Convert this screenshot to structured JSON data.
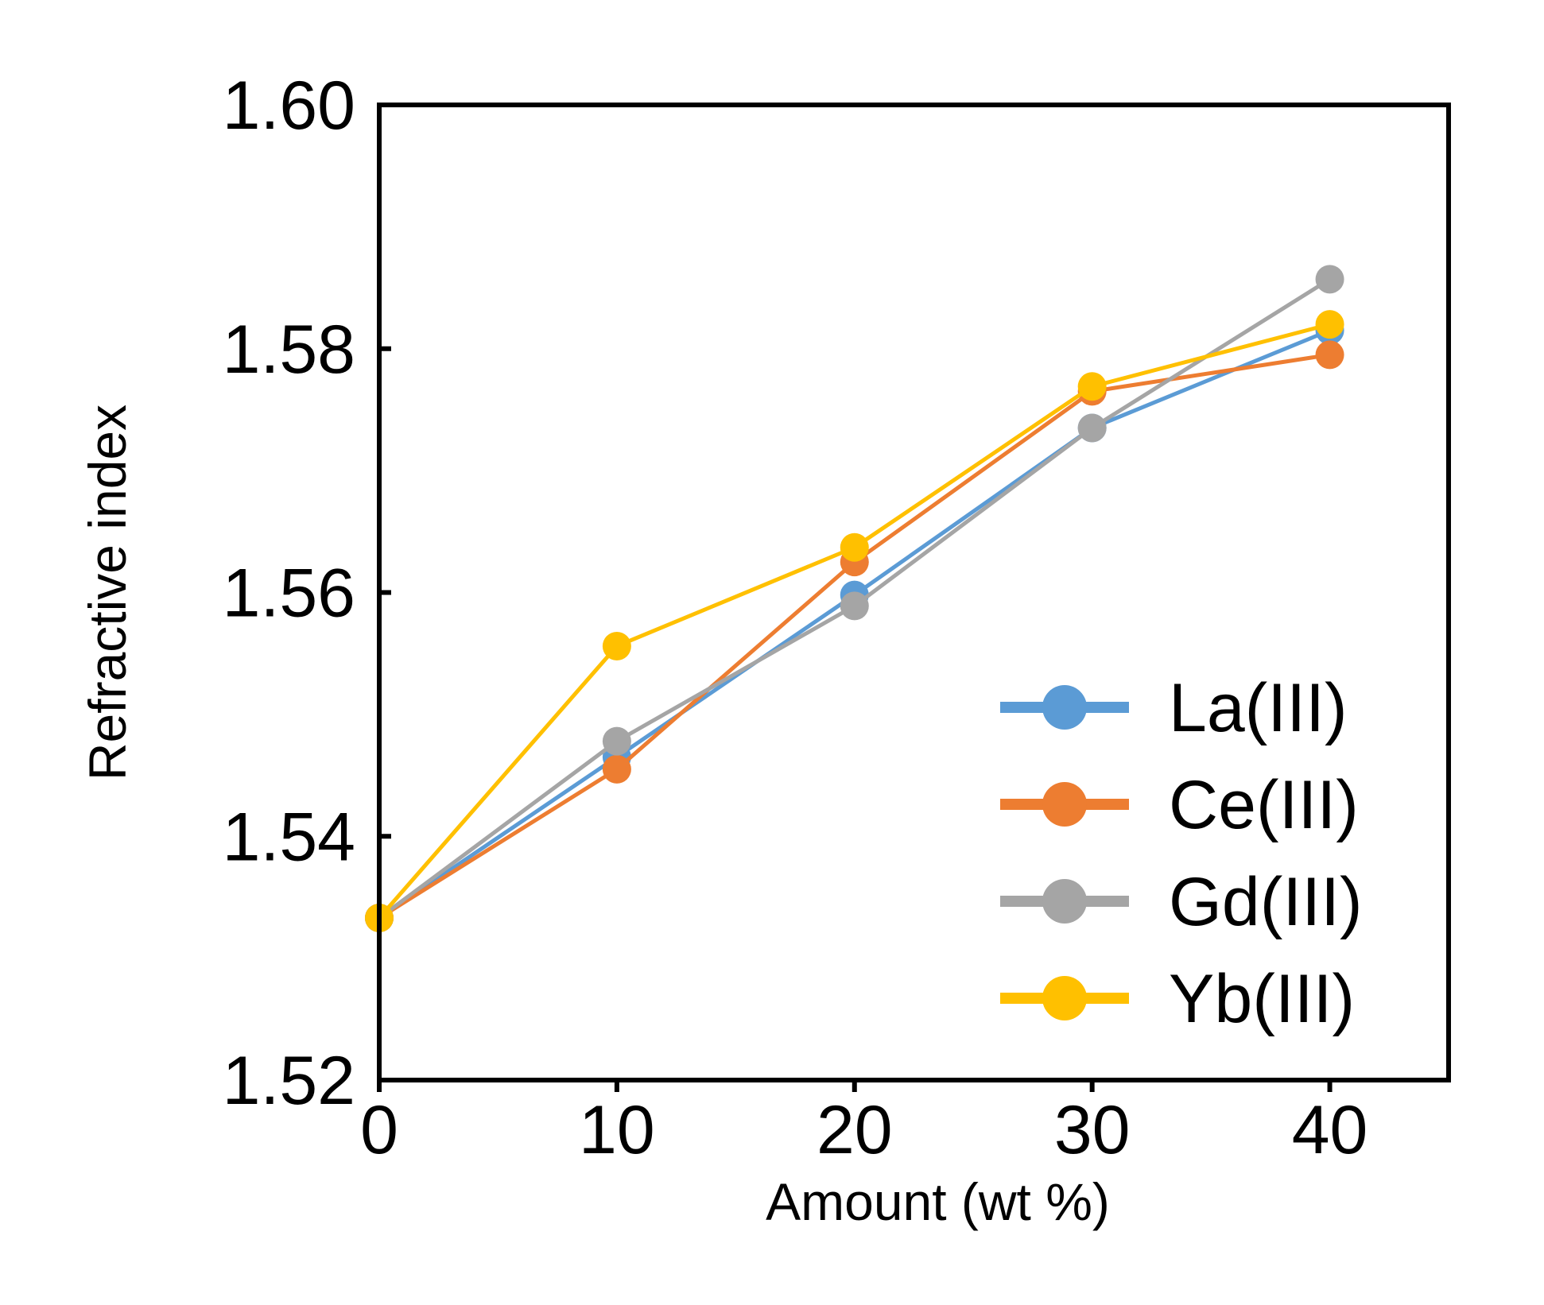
{
  "chart_data": {
    "type": "line",
    "title": "",
    "xlabel": "Amount (wt %)",
    "ylabel": "Refractive index",
    "x": [
      0,
      10,
      20,
      30,
      40
    ],
    "xlim": [
      0,
      45
    ],
    "ylim": [
      1.52,
      1.6
    ],
    "xticks": [
      0,
      10,
      20,
      30,
      40
    ],
    "yticks": [
      1.52,
      1.54,
      1.56,
      1.58,
      1.6
    ],
    "ytick_labels": [
      "1.52",
      "1.54",
      "1.56",
      "1.58",
      "1.60"
    ],
    "xtick_labels": [
      "0",
      "10",
      "20",
      "30",
      "40"
    ],
    "grid": false,
    "legend_position": "bottom-right",
    "series": [
      {
        "name": "La(III)",
        "color": "#5b9bd5",
        "values": [
          1.5333,
          1.5465,
          1.5598,
          1.5735,
          1.5815
        ]
      },
      {
        "name": "Ce(III)",
        "color": "#ed7d31",
        "values": [
          1.5333,
          1.5455,
          1.5625,
          1.5765,
          1.5795
        ]
      },
      {
        "name": "Gd(III)",
        "color": "#a5a5a5",
        "values": [
          1.5333,
          1.5478,
          1.5589,
          1.5735,
          1.5857
        ]
      },
      {
        "name": "Yb(III)",
        "color": "#ffc000",
        "values": [
          1.5333,
          1.5556,
          1.5637,
          1.5769,
          1.582
        ]
      }
    ]
  }
}
